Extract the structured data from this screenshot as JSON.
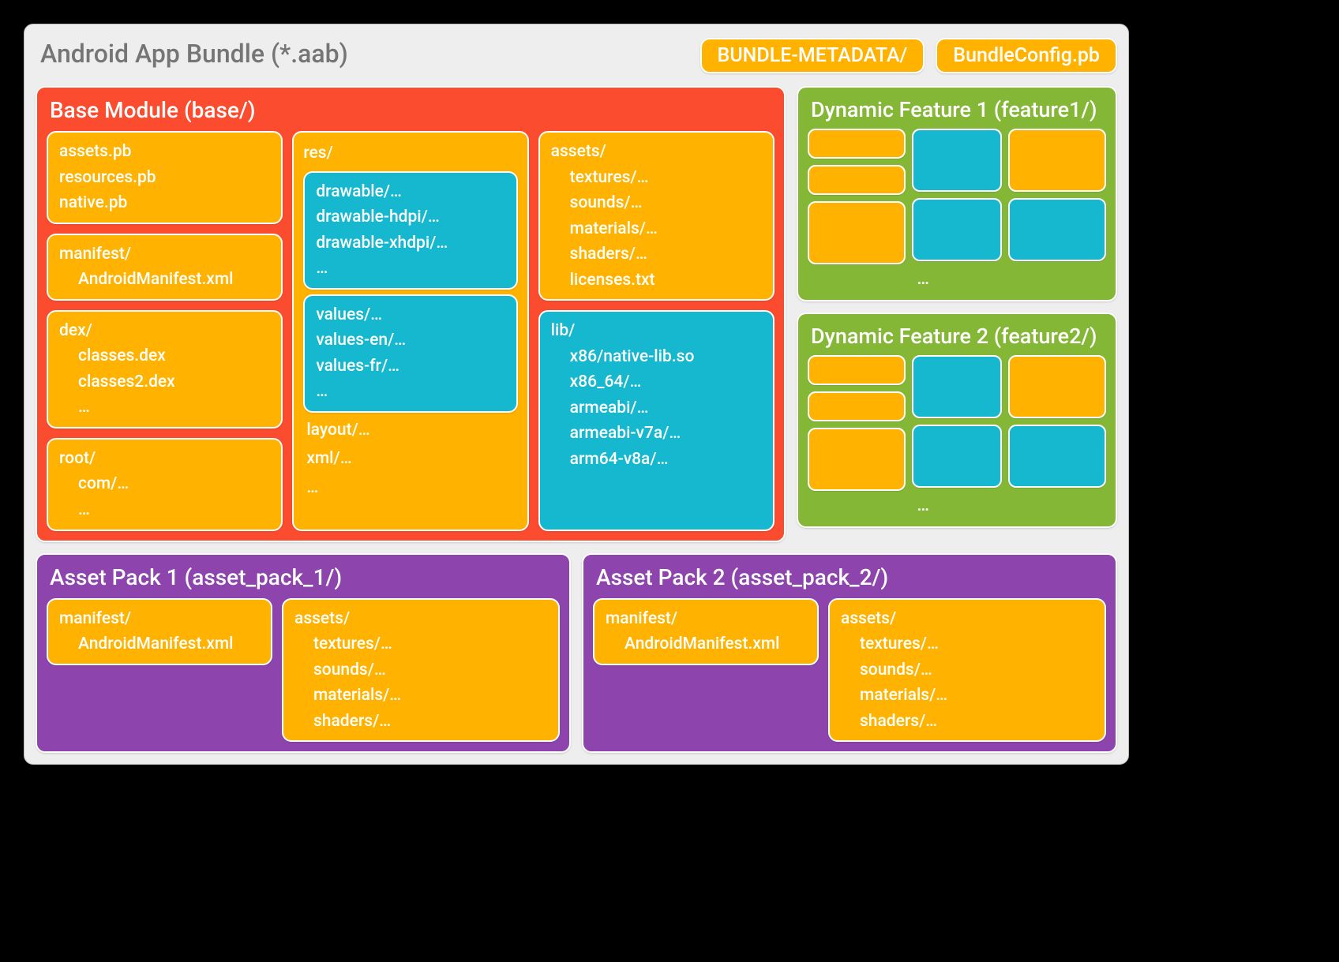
{
  "colors": {
    "panel": "#eeeeee",
    "orange": "#fb4c2f",
    "amber": "#ffb300",
    "cyan": "#15b8cf",
    "green": "#85b737",
    "purple": "#8e44ad",
    "grey_text": "#757575",
    "white": "#ffffff"
  },
  "bundle_title": "Android App Bundle (*.aab)",
  "top_tags": {
    "metadata": "BUNDLE-METADATA/",
    "config": "BundleConfig.pb"
  },
  "base": {
    "title": "Base Module (base/)",
    "pb": [
      "assets.pb",
      "resources.pb",
      "native.pb"
    ],
    "manifest": {
      "hdr": "manifest/",
      "file": "AndroidManifest.xml"
    },
    "dex": {
      "hdr": "dex/",
      "lines": [
        "classes.dex",
        "classes2.dex",
        "…"
      ]
    },
    "root": {
      "hdr": "root/",
      "lines": [
        "com/…",
        "…"
      ]
    },
    "res": {
      "hdr": "res/",
      "drawable": [
        "drawable/…",
        "drawable-hdpi/…",
        "drawable-xhdpi/…",
        "…"
      ],
      "values": [
        "values/…",
        "values-en/…",
        "values-fr/…",
        "…"
      ],
      "footer": [
        "layout/…",
        "xml/…",
        "…"
      ]
    },
    "assets": {
      "hdr": "assets/",
      "lines": [
        "textures/…",
        "sounds/…",
        "materials/…",
        "shaders/…",
        "licenses.txt"
      ]
    },
    "lib": {
      "hdr": "lib/",
      "lines": [
        "x86/native-lib.so",
        "x86_64/…",
        "armeabi/…",
        "armeabi-v7a/…",
        "arm64-v8a/…"
      ]
    }
  },
  "features": [
    {
      "title": "Dynamic Feature 1 (feature1/)",
      "dots": "…"
    },
    {
      "title": "Dynamic Feature 2 (feature2/)",
      "dots": "…"
    }
  ],
  "asset_packs": [
    {
      "title": "Asset Pack 1 (asset_pack_1/)",
      "manifest": {
        "hdr": "manifest/",
        "file": "AndroidManifest.xml"
      },
      "assets": {
        "hdr": "assets/",
        "lines": [
          "textures/…",
          "sounds/…",
          "materials/…",
          "shaders/…"
        ]
      }
    },
    {
      "title": "Asset Pack 2 (asset_pack_2/)",
      "manifest": {
        "hdr": "manifest/",
        "file": "AndroidManifest.xml"
      },
      "assets": {
        "hdr": "assets/",
        "lines": [
          "textures/…",
          "sounds/…",
          "materials/…",
          "shaders/…"
        ]
      }
    }
  ]
}
